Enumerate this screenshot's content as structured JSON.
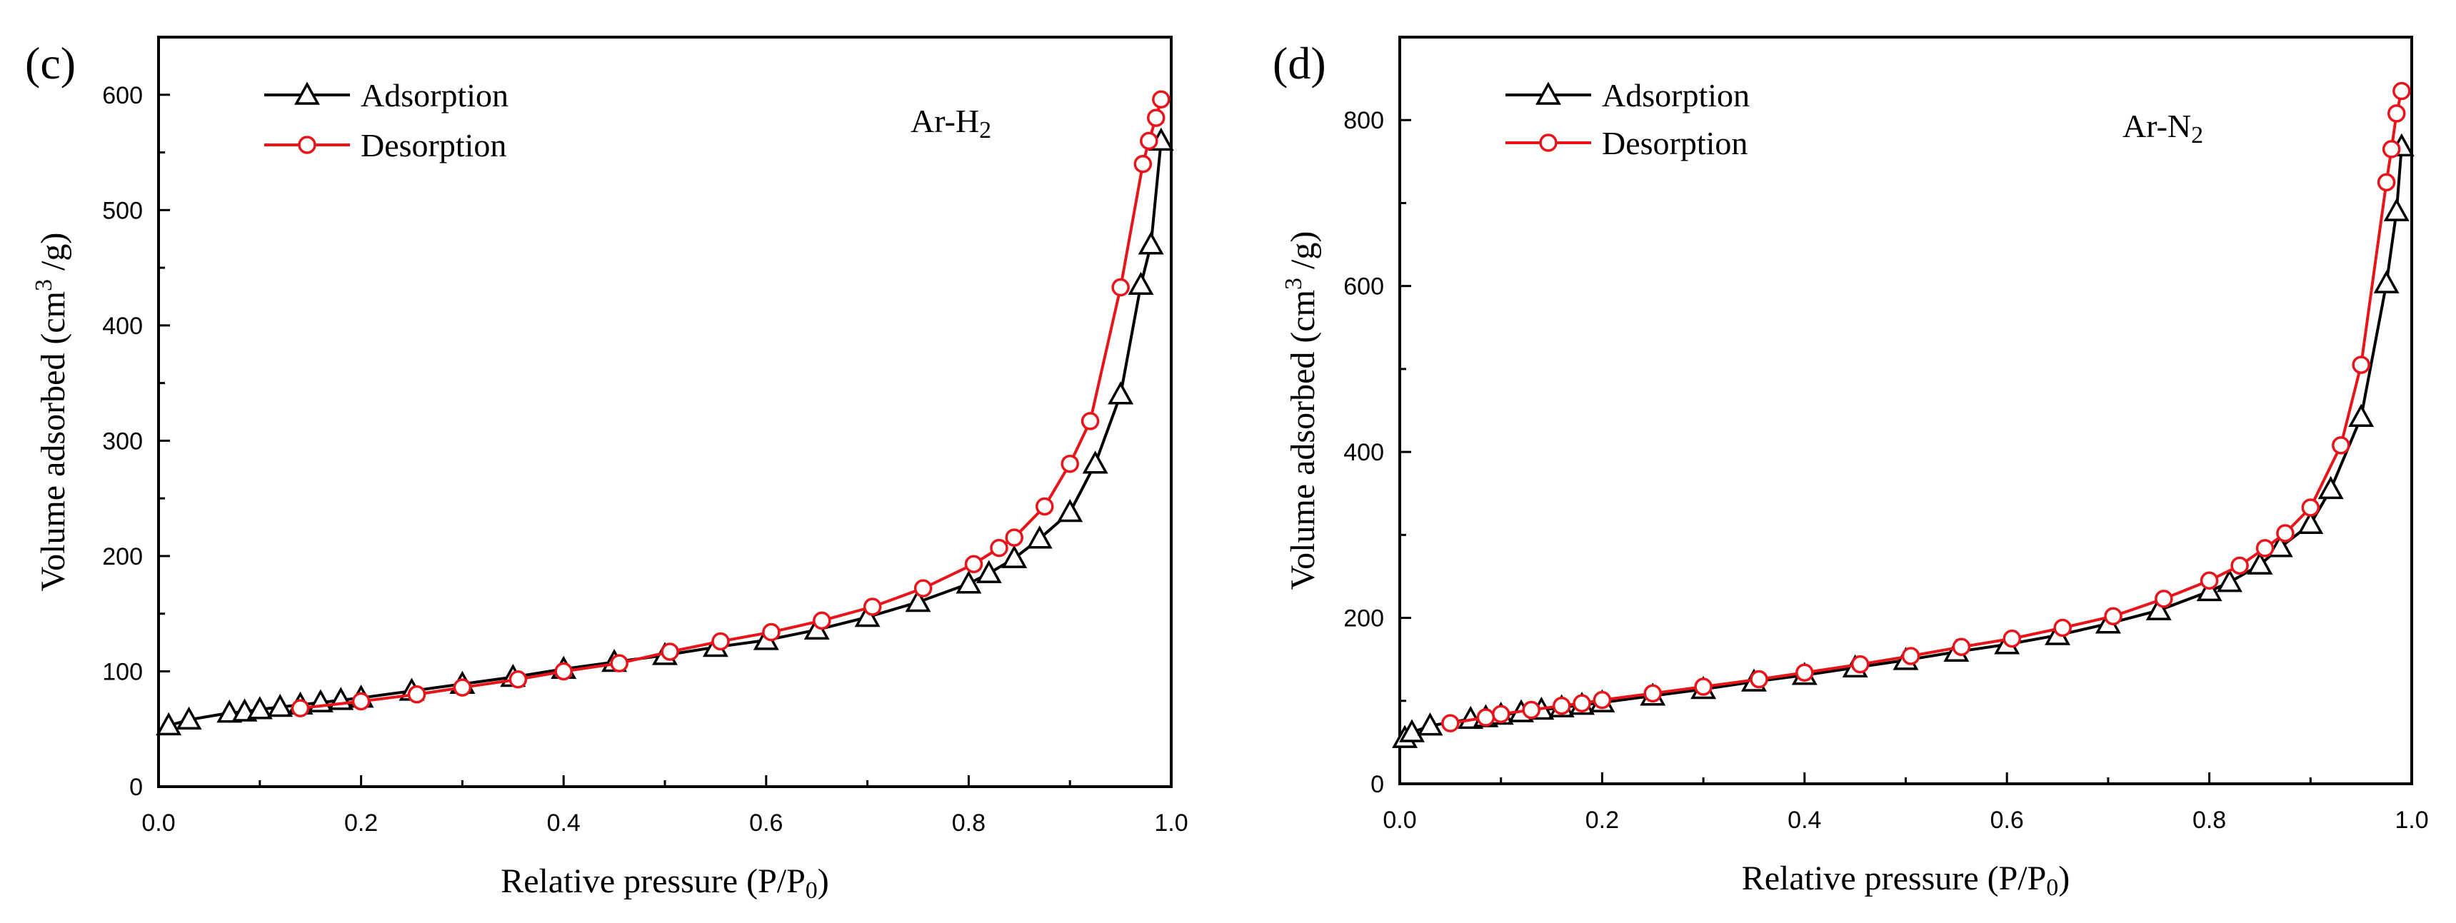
{
  "chart_data": [
    {
      "type": "line",
      "panel_label": "(c)",
      "annotation": {
        "text": "Ar-H",
        "subscript": "2"
      },
      "xlabel": {
        "text": "Relative pressure (P/P",
        "subscript": "0",
        "suffix": ")"
      },
      "ylabel": {
        "text": "Volume adsorbed (cm",
        "superscript": "3",
        "suffix": " /g)"
      },
      "xlim": [
        0,
        1.0
      ],
      "ylim": [
        0,
        650
      ],
      "xticks": [
        0.0,
        0.2,
        0.4,
        0.6,
        0.8,
        1.0
      ],
      "xtick_labels": [
        "0.0",
        "0.2",
        "0.4",
        "0.6",
        "0.8",
        "1.0"
      ],
      "yticks": [
        0,
        100,
        200,
        300,
        400,
        500,
        600
      ],
      "ytick_labels": [
        "0",
        "100",
        "200",
        "300",
        "400",
        "500",
        "600"
      ],
      "legend_position": "top-left",
      "series": [
        {
          "name": "Adsorption",
          "color": "#000000",
          "marker": "triangle",
          "x": [
            0.01,
            0.03,
            0.07,
            0.085,
            0.1,
            0.12,
            0.14,
            0.16,
            0.18,
            0.2,
            0.25,
            0.3,
            0.35,
            0.4,
            0.45,
            0.5,
            0.55,
            0.6,
            0.65,
            0.7,
            0.75,
            0.8,
            0.82,
            0.845,
            0.87,
            0.9,
            0.925,
            0.95,
            0.97,
            0.98,
            0.99
          ],
          "y": [
            53,
            58,
            64,
            65,
            67,
            69,
            71,
            73,
            75,
            77,
            83,
            89,
            95,
            102,
            108,
            114,
            121,
            127,
            136,
            147,
            160,
            176,
            185,
            198,
            215,
            238,
            280,
            340,
            435,
            470,
            560
          ]
        },
        {
          "name": "Desorption",
          "color": "#e8141a",
          "marker": "circle",
          "x": [
            0.99,
            0.985,
            0.978,
            0.972,
            0.95,
            0.92,
            0.9,
            0.875,
            0.845,
            0.83,
            0.805,
            0.755,
            0.705,
            0.655,
            0.605,
            0.555,
            0.505,
            0.455,
            0.4,
            0.355,
            0.3,
            0.255,
            0.2,
            0.14
          ],
          "y": [
            596,
            580,
            560,
            540,
            433,
            317,
            280,
            243,
            216,
            207,
            193,
            172,
            156,
            144,
            134,
            126,
            117,
            107,
            100,
            93,
            86,
            80,
            74,
            68
          ]
        }
      ]
    },
    {
      "type": "line",
      "panel_label": "(d)",
      "annotation": {
        "text": "Ar-N",
        "subscript": "2"
      },
      "xlabel": {
        "text": "Relative pressure (P/P",
        "subscript": "0",
        "suffix": ")"
      },
      "ylabel": {
        "text": "Volume adsorbed (cm",
        "superscript": "3",
        "suffix": " /g)"
      },
      "xlim": [
        0,
        1.0
      ],
      "ylim": [
        0,
        900
      ],
      "xticks": [
        0.0,
        0.2,
        0.4,
        0.6,
        0.8,
        1.0
      ],
      "xtick_labels": [
        "0.0",
        "0.2",
        "0.4",
        "0.6",
        "0.8",
        "1.0"
      ],
      "yticks": [
        0,
        200,
        400,
        600,
        800
      ],
      "ytick_labels": [
        "0",
        "200",
        "400",
        "600",
        "800"
      ],
      "legend_position": "top-left",
      "series": [
        {
          "name": "Adsorption",
          "color": "#000000",
          "marker": "triangle",
          "x": [
            0.005,
            0.012,
            0.03,
            0.07,
            0.085,
            0.1,
            0.12,
            0.14,
            0.16,
            0.18,
            0.2,
            0.25,
            0.3,
            0.35,
            0.4,
            0.45,
            0.5,
            0.55,
            0.6,
            0.65,
            0.7,
            0.75,
            0.8,
            0.82,
            0.85,
            0.87,
            0.9,
            0.92,
            0.95,
            0.975,
            0.985,
            0.99
          ],
          "y": [
            55,
            62,
            70,
            78,
            80,
            83,
            86,
            89,
            92,
            95,
            98,
            106,
            114,
            123,
            131,
            140,
            149,
            159,
            168,
            179,
            193,
            209,
            232,
            243,
            264,
            285,
            313,
            355,
            442,
            603,
            690,
            768
          ]
        },
        {
          "name": "Desorption",
          "color": "#e8141a",
          "marker": "circle",
          "x": [
            0.99,
            0.985,
            0.98,
            0.975,
            0.95,
            0.93,
            0.9,
            0.875,
            0.855,
            0.83,
            0.8,
            0.755,
            0.705,
            0.655,
            0.605,
            0.555,
            0.505,
            0.455,
            0.4,
            0.355,
            0.3,
            0.25,
            0.2,
            0.18,
            0.16,
            0.13,
            0.1,
            0.085,
            0.05
          ],
          "y": [
            835,
            808,
            765,
            725,
            505,
            408,
            333,
            302,
            284,
            263,
            245,
            223,
            202,
            188,
            175,
            165,
            154,
            144,
            134,
            126,
            117,
            109,
            101,
            97,
            94,
            89,
            84,
            80,
            73
          ]
        }
      ]
    }
  ]
}
